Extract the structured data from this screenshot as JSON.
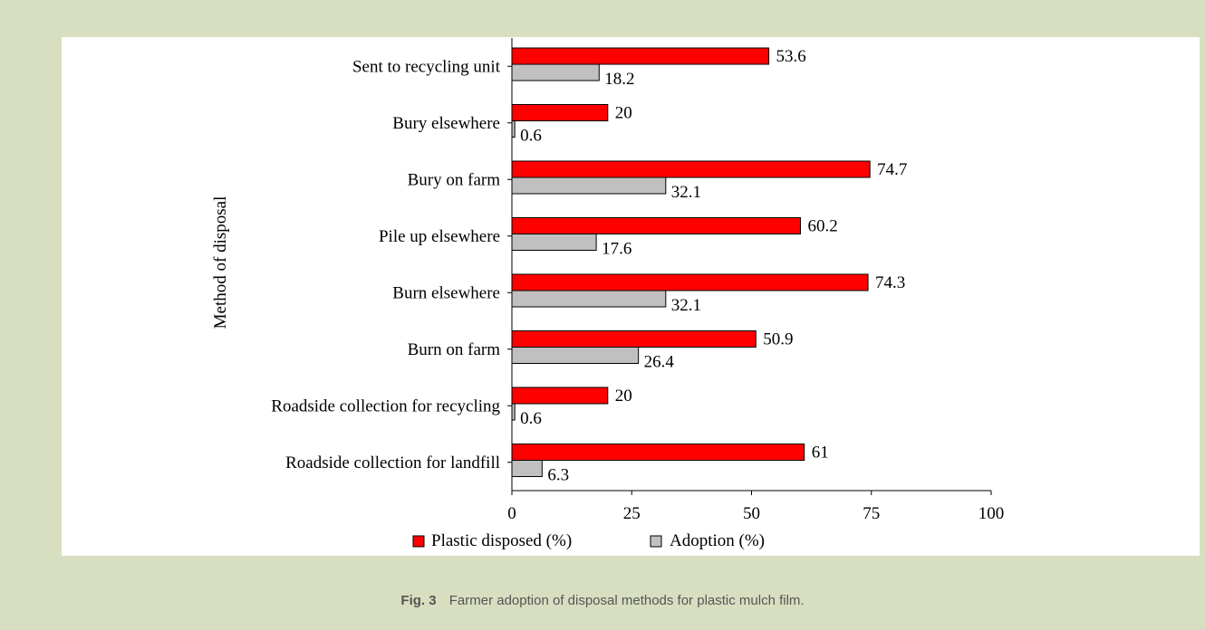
{
  "caption": {
    "label": "Fig. 3",
    "text": "Farmer adoption of disposal methods for plastic mulch film."
  },
  "chart_data": {
    "type": "bar",
    "orientation": "horizontal",
    "title": "",
    "xlabel": "",
    "ylabel": "Method of disposal",
    "xlim": [
      0,
      100
    ],
    "xticks": [
      0,
      25,
      50,
      75,
      100
    ],
    "grid": false,
    "legend_position": "bottom",
    "categories": [
      "Sent to recycling unit",
      "Bury elsewhere",
      "Bury on farm",
      "Pile up elsewhere",
      "Burn elsewhere",
      "Burn on farm",
      "Roadside collection for recycling",
      "Roadside collection for landfill"
    ],
    "series": [
      {
        "name": "Plastic disposed (%)",
        "color": "#ff0000",
        "values": [
          53.6,
          20,
          74.7,
          60.2,
          74.3,
          50.9,
          20,
          61
        ],
        "labels": [
          "53.6",
          "20",
          "74.7",
          "60.2",
          "74.3",
          "50.9",
          "20",
          "61"
        ]
      },
      {
        "name": "Adoption (%)",
        "color": "#c0c0c0",
        "values": [
          18.2,
          0.6,
          32.1,
          17.6,
          32.1,
          26.4,
          0.6,
          6.3
        ],
        "labels": [
          "18.2",
          "0.6",
          "32.1",
          "17.6",
          "32.1",
          "26.4",
          "0.6",
          "6.3"
        ]
      }
    ]
  }
}
